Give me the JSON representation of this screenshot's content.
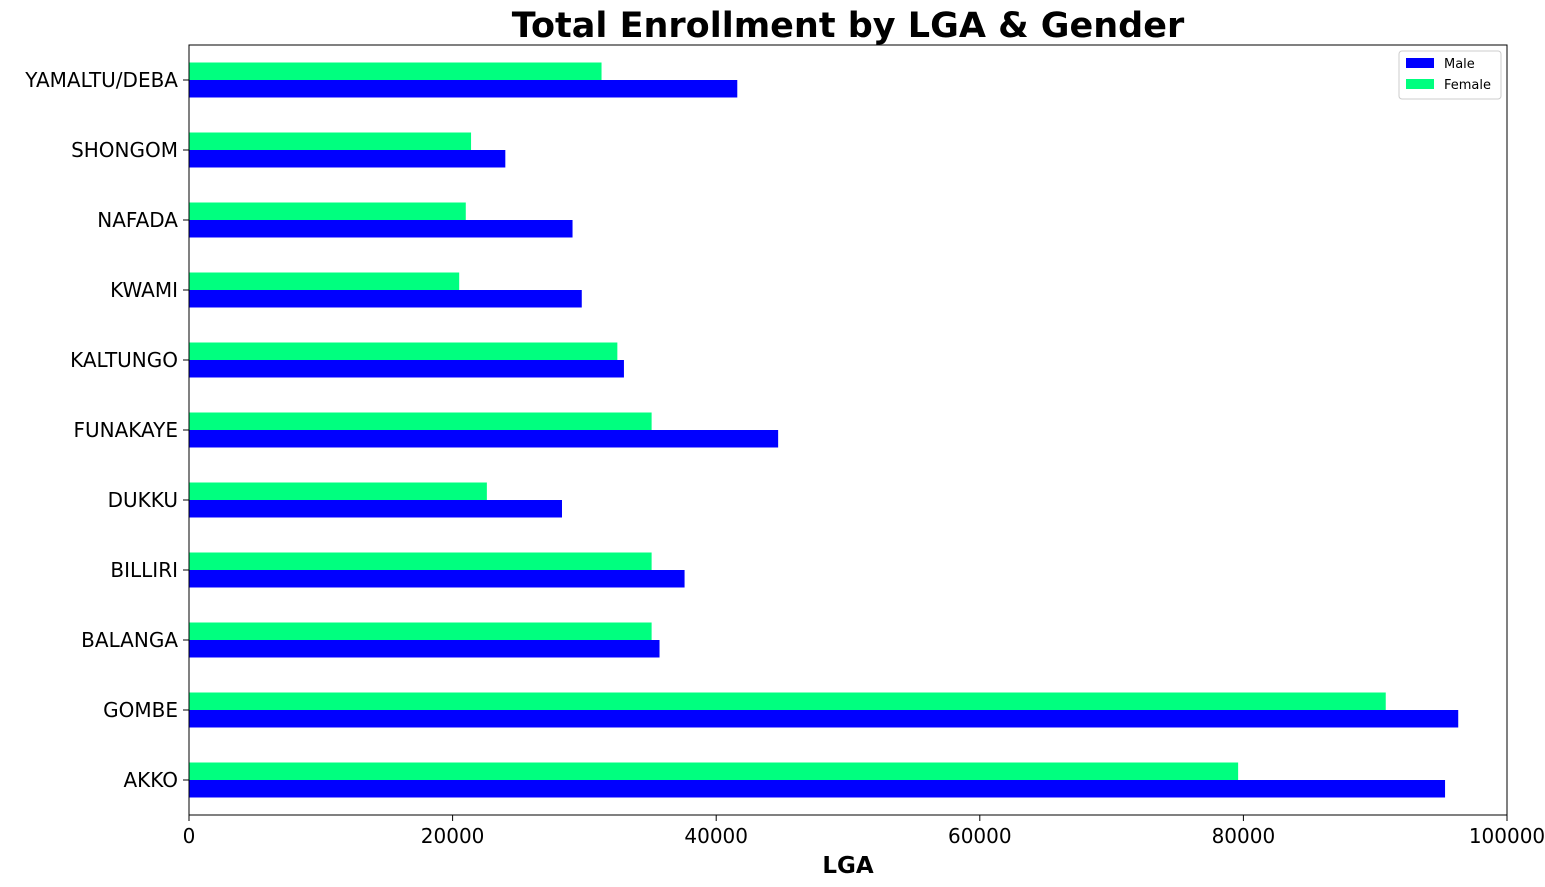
{
  "chart_data": {
    "type": "bar",
    "orientation": "horizontal",
    "title": "Total Enrollment by LGA & Gender",
    "xlabel": "LGA",
    "ylabel": "",
    "xlim": [
      0,
      100000
    ],
    "xticks": [
      0,
      20000,
      40000,
      60000,
      80000,
      100000
    ],
    "xtick_labels": [
      "0",
      "20000",
      "40000",
      "60000",
      "80000",
      "100000"
    ],
    "categories": [
      "AKKO",
      "GOMBE",
      "BALANGA",
      "BILLIRI",
      "DUKKU",
      "FUNAKAYE",
      "KALTUNGO",
      "KWAMI",
      "NAFADA",
      "SHONGOM",
      "YAMALTU/DEBA"
    ],
    "series": [
      {
        "name": "Male",
        "color": "#0000ff",
        "values": [
          95300,
          96300,
          35700,
          37600,
          28300,
          44700,
          33000,
          29800,
          29100,
          24000,
          41600
        ]
      },
      {
        "name": "Female",
        "color": "#00ff7f",
        "values": [
          79600,
          90800,
          35100,
          35100,
          22600,
          35100,
          32500,
          20500,
          21000,
          21400,
          31300
        ]
      }
    ],
    "legend": {
      "position": "top-right"
    },
    "grid": false
  }
}
